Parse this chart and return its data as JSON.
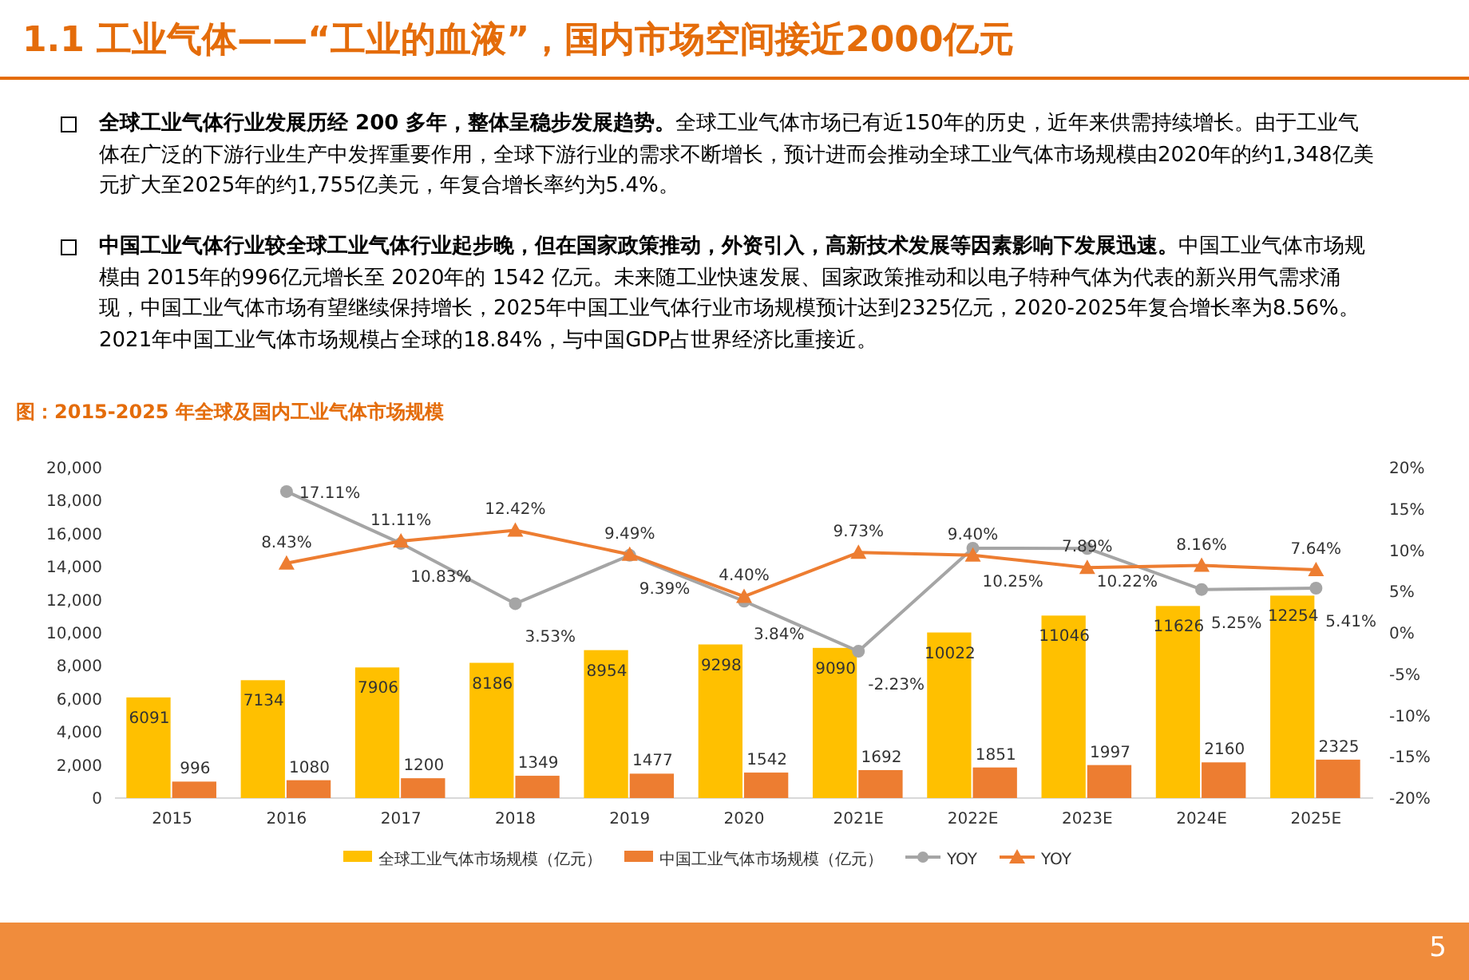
{
  "chart_data": {
    "type": "bar",
    "title": "图：2015-2025 年全球及国内工业气体市场规模",
    "annotations": [
      "1.1 工业气体——“工业的血液”，国内市场空间接近2000亿元",
      "**全球工业气体行业发展历经 200 多年，整体呈稳步发展趋势。**全球工业气体市场已有近150年的历史，近年来供需持续增长。由于工业气体在广泛的下游行业生产中发挥重要作用，全球下游行业的需求不断增长，预计进而会推动全球工业气体市场规模由2020年的约1,348亿美元扩大至2025年的约1,755亿美元，年复合增长率约为5.4%。",
      "**中国工业气体行业较全球工业气体行业起步晚，但在国家政策推动，外资引入，高新技术发展等因素影响下发展迅速。**中国工业气体市场规模由 2015年的996亿元增长至 2020年的 1542 亿元。未来随工业快速发展、国家政策推动和以电子特种气体为代表的新兴用气需求涌现，中国工业气体市场有望继续保持增长，2025年中国工业气体行业市场规模预计达到2325亿元，2020-2025年复合增长率为8.56%。2021年中国工业气体市场规模占全球的18.84%，与中国GDP占世界经济比重接近。",
      "5"
    ],
    "categories": [
      "2015",
      "2016",
      "2017",
      "2018",
      "2019",
      "2020",
      "2021E",
      "2022E",
      "2023E",
      "2024E",
      "2025E"
    ],
    "series": [
      {
        "name": "全球工业气体市场规模（亿元）",
        "color": "#ffc000",
        "values": [
          6091,
          7134,
          7906,
          8186,
          8954,
          9298,
          9090,
          10022,
          11046,
          11626,
          12254
        ],
        "data_labels": true
      },
      {
        "name": "中国工业气体市场规模（亿元）",
        "color": "#ed7d31",
        "values": [
          996,
          1080,
          1200,
          1349,
          1477,
          1542,
          1692,
          1851,
          1997,
          2160,
          2325
        ],
        "data_labels": true
      },
      {
        "name": "YOY",
        "type": "line",
        "axis": "y2",
        "color": "#a5a5a5",
        "marker": "circle",
        "values": [
          null,
          17.11,
          10.83,
          3.53,
          9.39,
          3.84,
          -2.23,
          10.25,
          10.22,
          5.25,
          5.41
        ],
        "value_labels": [
          null,
          "17.11%",
          "10.83%",
          "3.53%",
          "9.39%",
          "3.84%",
          "-2.23%",
          "10.25%",
          "10.22%",
          "5.25%",
          "5.41%"
        ]
      },
      {
        "name": "YOY",
        "type": "line",
        "axis": "y2",
        "color": "#ed7d31",
        "marker": "triangle",
        "values": [
          null,
          8.43,
          11.11,
          12.42,
          9.49,
          4.4,
          9.73,
          9.4,
          7.89,
          8.16,
          7.64
        ],
        "value_labels": [
          null,
          "8.43%",
          "11.11%",
          "12.42%",
          "9.49%",
          "4.40%",
          "9.73%",
          "9.40%",
          "7.89%",
          "8.16%",
          "7.64%"
        ]
      }
    ],
    "ylim": [
      0,
      20000
    ],
    "yticks": [
      0,
      {
        "value": 2000,
        "label": "2,000"
      },
      {
        "value": 4000,
        "label": "4,000"
      },
      {
        "value": 6000,
        "label": "6,000"
      },
      {
        "value": 8000,
        "label": "8,000"
      },
      {
        "value": 10000,
        "label": "10,000"
      },
      {
        "value": 12000,
        "label": "12,000"
      },
      {
        "value": 14000,
        "label": "14,000"
      },
      {
        "value": 16000,
        "label": "16,000"
      },
      {
        "value": 18000,
        "label": "18,000"
      },
      {
        "value": 20000,
        "label": "20,000"
      }
    ],
    "y2lim": [
      -20,
      20
    ],
    "y2ticks": [
      {
        "value": -20,
        "label": "-20%"
      },
      {
        "value": -15,
        "label": "-15%"
      },
      {
        "value": -10,
        "label": "-10%"
      },
      {
        "value": -5,
        "label": "-5%"
      },
      {
        "value": 0,
        "label": "0%"
      },
      {
        "value": 5,
        "label": "5%"
      },
      {
        "value": 10,
        "label": "10%"
      },
      {
        "value": 15,
        "label": "15%"
      },
      {
        "value": 20,
        "label": "20%"
      }
    ],
    "grid": false,
    "legend": "bottom"
  }
}
